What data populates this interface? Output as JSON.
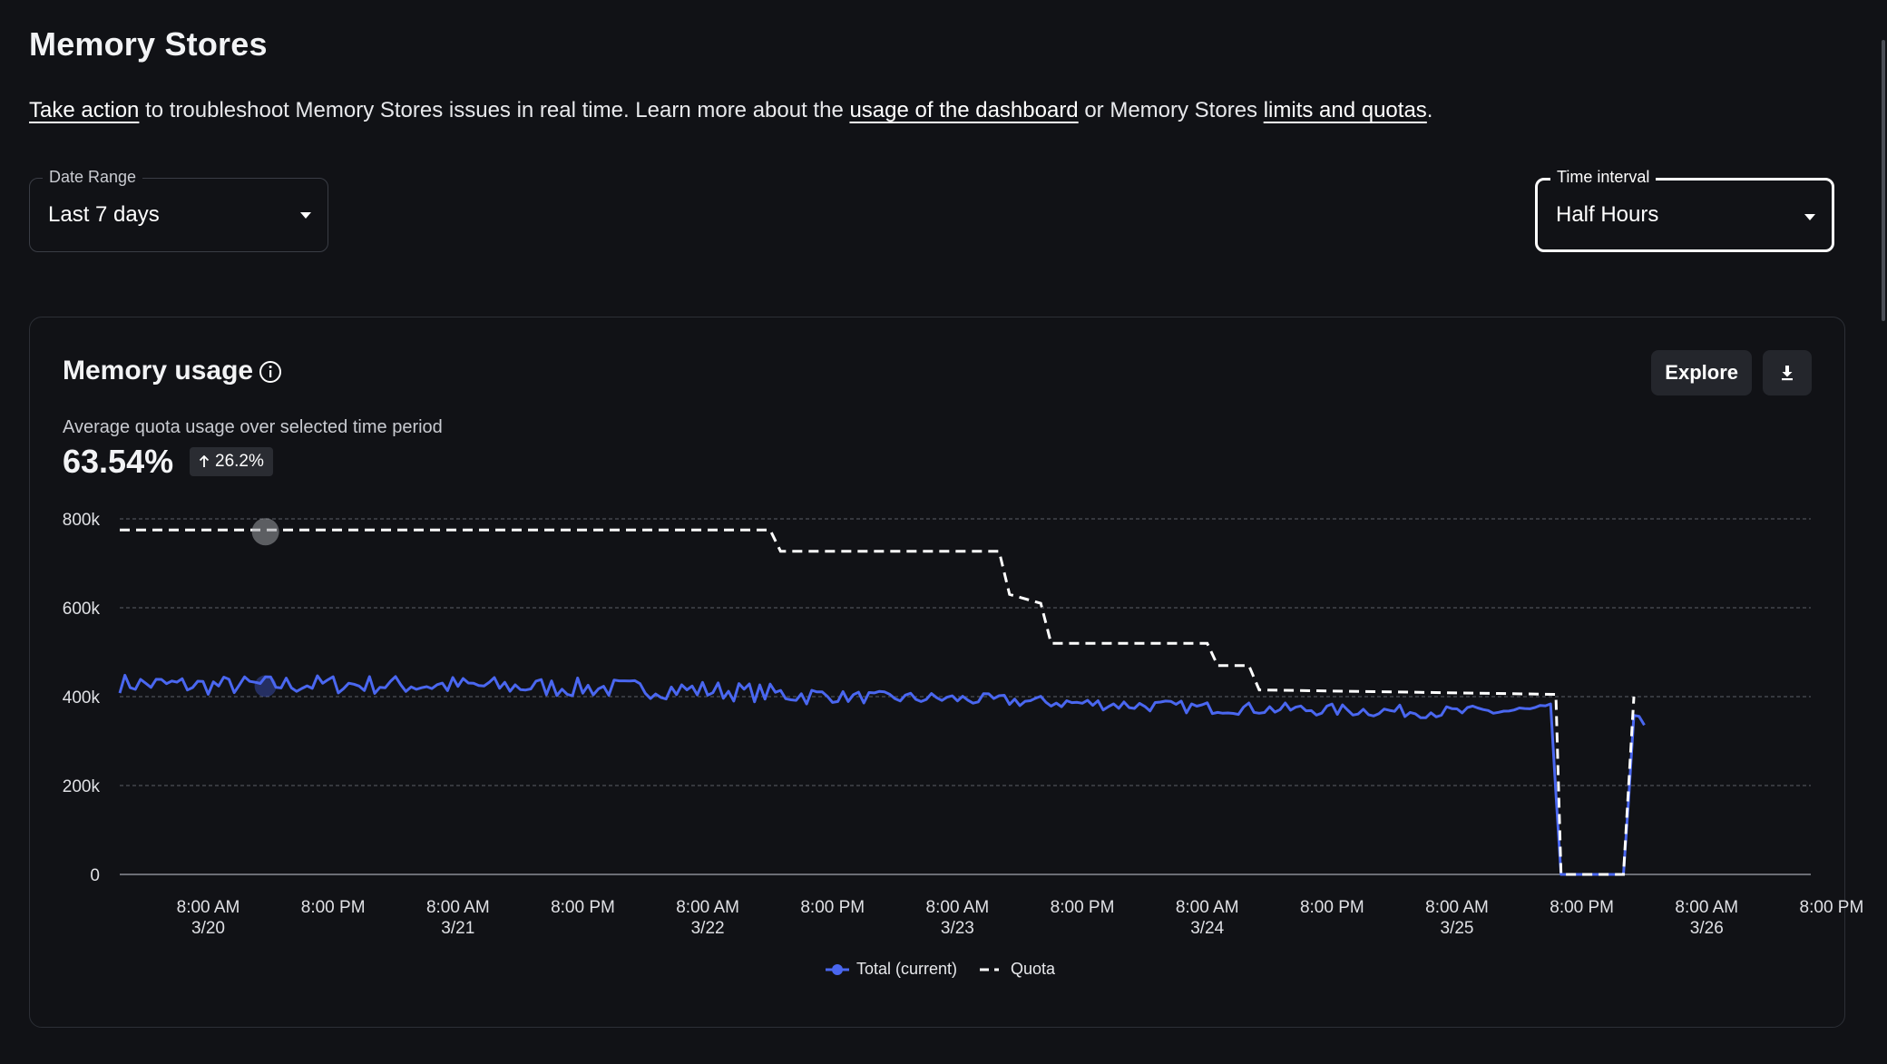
{
  "page": {
    "title": "Memory Stores",
    "description": {
      "link_take_action": "Take action",
      "text_1": " to troubleshoot Memory Stores issues in real time. Learn more about the ",
      "link_usage": "usage of the dashboard",
      "text_2": " or Memory Stores ",
      "link_limits": "limits and quotas",
      "text_3": "."
    }
  },
  "filters": {
    "date_range": {
      "label": "Date Range",
      "value": "Last 7 days"
    },
    "time_interval": {
      "label": "Time interval",
      "value": "Half Hours"
    }
  },
  "card": {
    "title": "Memory usage",
    "explore_label": "Explore",
    "subtitle": "Average quota usage over selected time period",
    "metric": "63.54%",
    "delta": "26.2%"
  },
  "chart_data": {
    "type": "line",
    "ylim": [
      0,
      800000
    ],
    "y_ticks": [
      "800k",
      "600k",
      "400k",
      "200k",
      "0"
    ],
    "y_tick_values": [
      800000,
      600000,
      400000,
      200000,
      0
    ],
    "x_ticks": [
      {
        "line1": "8:00 AM",
        "line2": "3/20"
      },
      {
        "line1": "8:00 PM",
        "line2": ""
      },
      {
        "line1": "8:00 AM",
        "line2": "3/21"
      },
      {
        "line1": "8:00 PM",
        "line2": ""
      },
      {
        "line1": "8:00 AM",
        "line2": "3/22"
      },
      {
        "line1": "8:00 PM",
        "line2": ""
      },
      {
        "line1": "8:00 AM",
        "line2": "3/23"
      },
      {
        "line1": "8:00 PM",
        "line2": ""
      },
      {
        "line1": "8:00 AM",
        "line2": "3/24"
      },
      {
        "line1": "8:00 PM",
        "line2": ""
      },
      {
        "line1": "8:00 AM",
        "line2": "3/25"
      },
      {
        "line1": "8:00 PM",
        "line2": ""
      },
      {
        "line1": "8:00 AM",
        "line2": "3/26"
      },
      {
        "line1": "8:00 PM",
        "line2": ""
      }
    ],
    "x_range_hours": [
      -8.5,
      154
    ],
    "grid": true,
    "legend_position": "bottom-center",
    "series": [
      {
        "name": "Total (current)",
        "color": "#4a67f0",
        "style": "solid",
        "hours": [
          -8.5,
          0,
          12,
          24,
          36,
          48,
          56,
          60,
          72,
          84,
          96,
          108,
          120,
          129,
          130,
          136,
          137,
          138
        ],
        "values": [
          430000,
          425000,
          428000,
          425000,
          420000,
          415000,
          405000,
          400000,
          395000,
          385000,
          375000,
          370000,
          365000,
          370000,
          0,
          0,
          345000,
          340000
        ]
      },
      {
        "name": "Quota",
        "color": "#ffffff",
        "style": "dashed",
        "hours": [
          -8.5,
          54,
          55,
          76,
          77,
          80,
          81,
          96,
          97,
          100,
          101,
          129.5,
          130,
          136,
          137
        ],
        "values": [
          775000,
          775000,
          727000,
          727000,
          630000,
          610000,
          520000,
          520000,
          470000,
          470000,
          415000,
          405000,
          0,
          0,
          400000
        ]
      }
    ]
  }
}
